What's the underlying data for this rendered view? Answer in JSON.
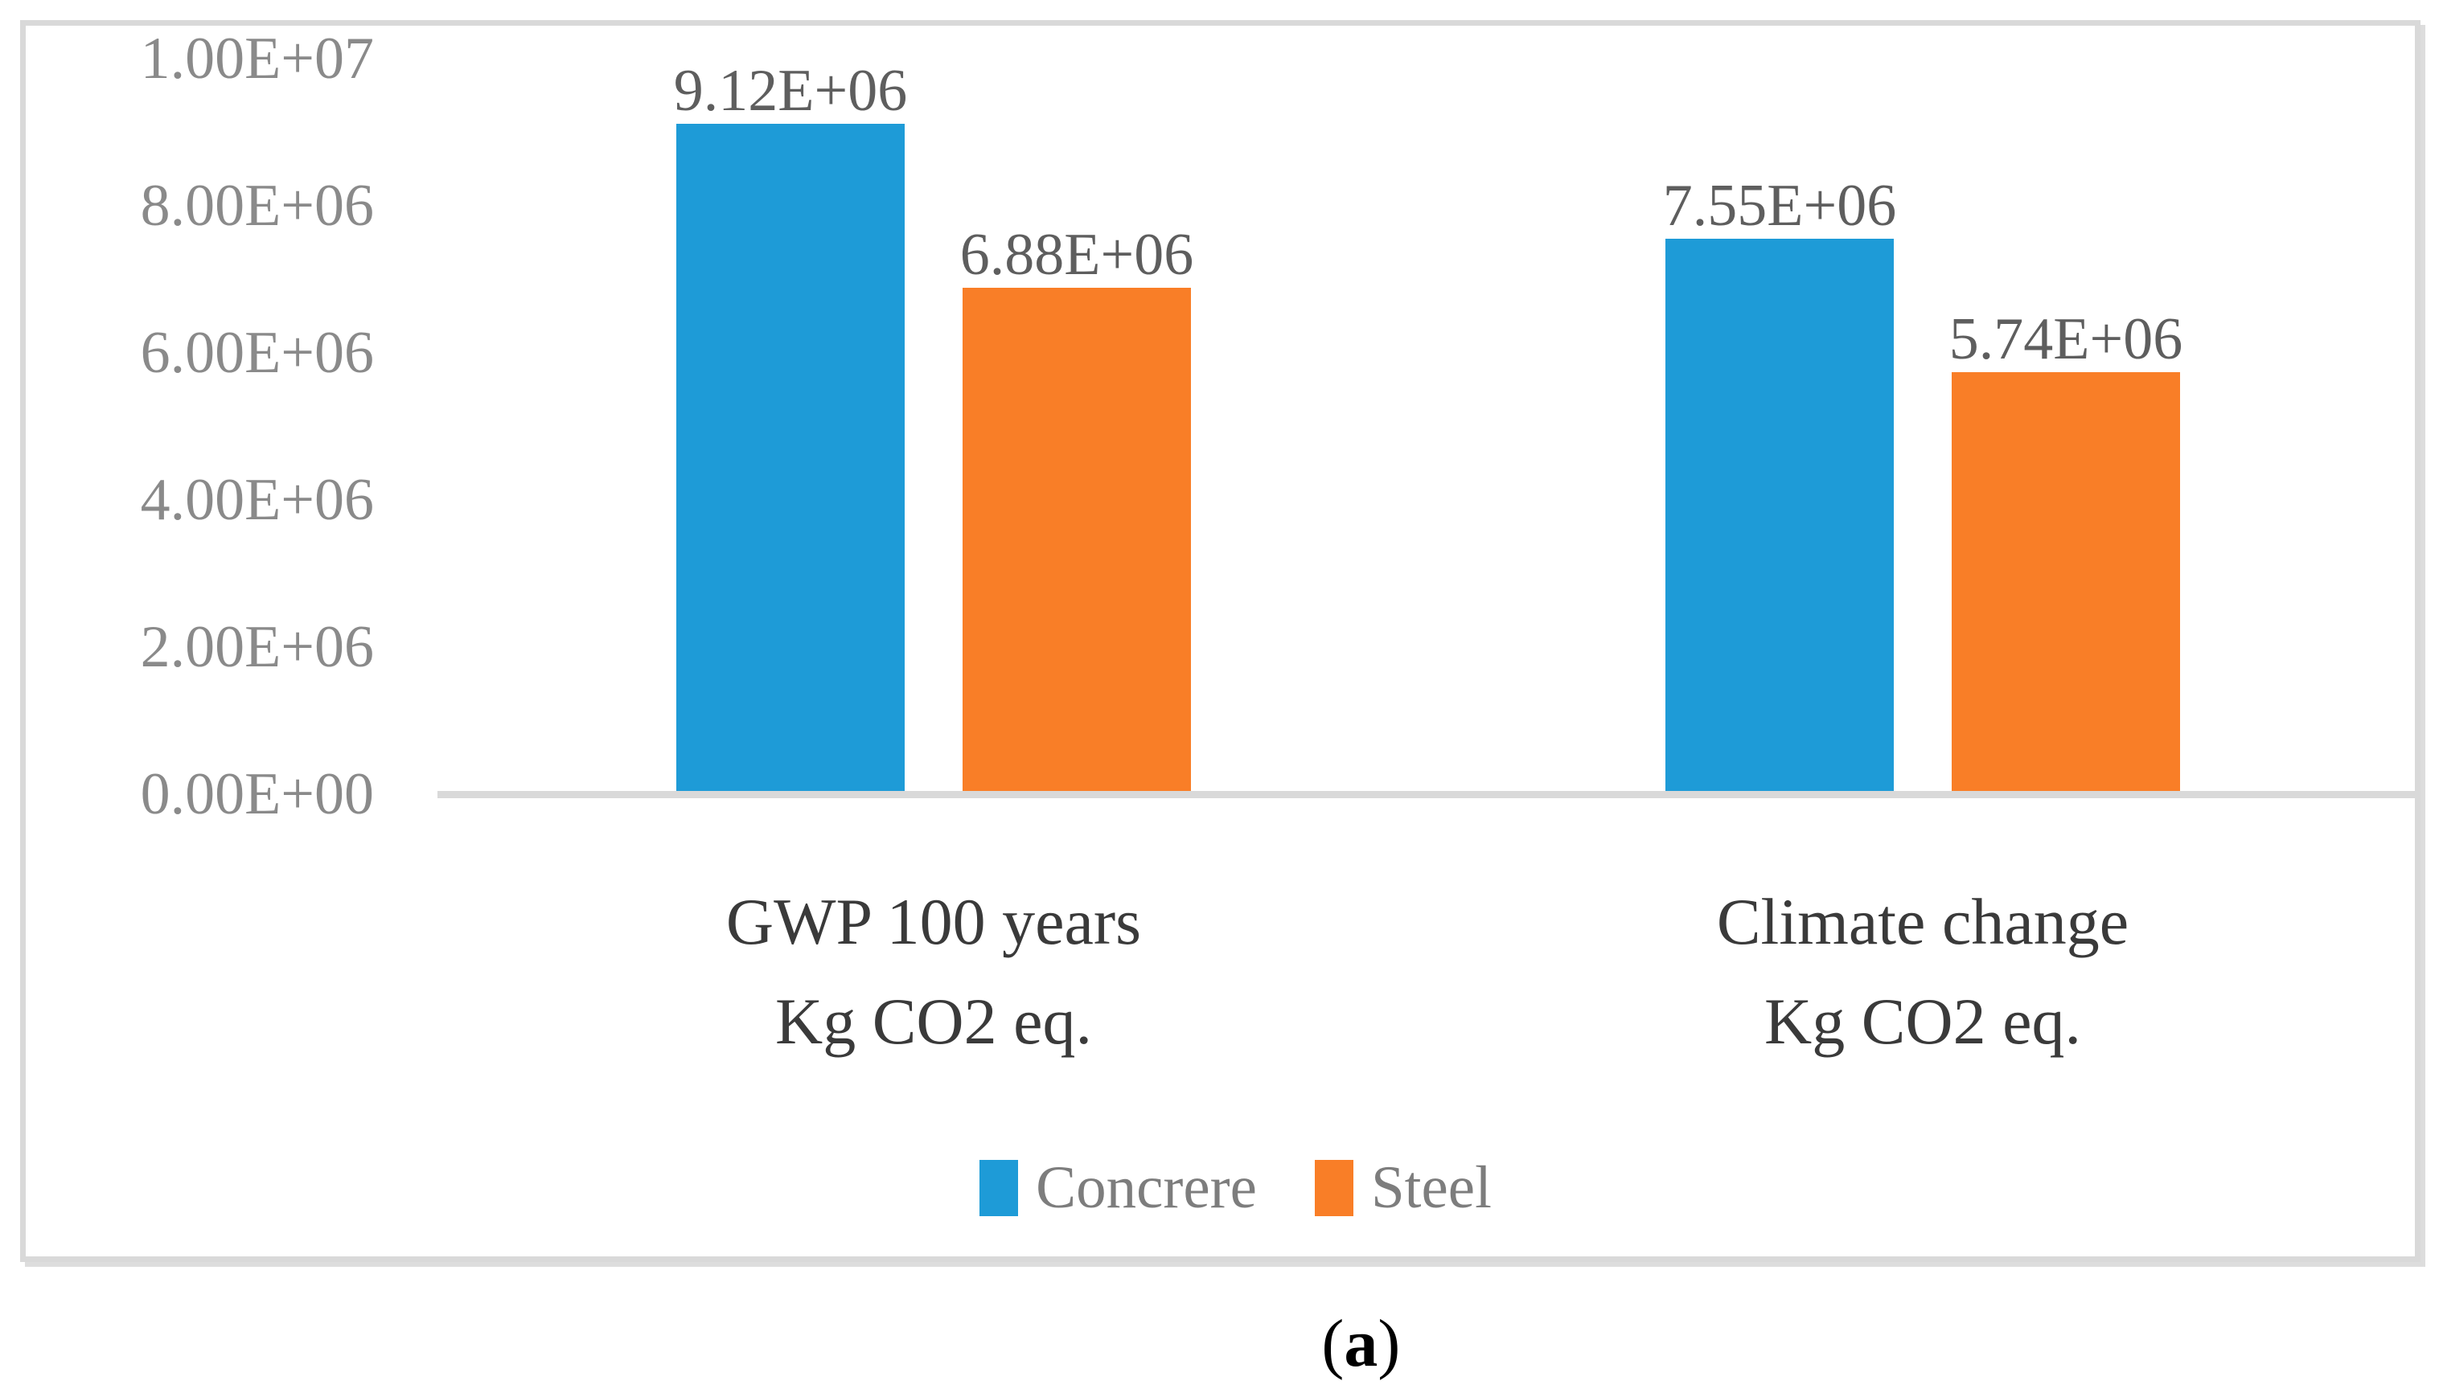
{
  "figure": {
    "caption_open": "(",
    "caption_letter": "a",
    "caption_close": ")"
  },
  "chart_data": {
    "type": "bar",
    "title": "",
    "xlabel": "",
    "ylabel": "",
    "grid": false,
    "legend_position": "bottom",
    "ylim": [
      0,
      10000000
    ],
    "y_ticks": [
      {
        "label": "0.00E+00",
        "value": 0
      },
      {
        "label": "2.00E+06",
        "value": 2000000
      },
      {
        "label": "4.00E+06",
        "value": 4000000
      },
      {
        "label": "6.00E+06",
        "value": 6000000
      },
      {
        "label": "8.00E+06",
        "value": 8000000
      },
      {
        "label": "1.00E+07",
        "value": 10000000
      }
    ],
    "categories": [
      {
        "lines": [
          "GWP 100 years",
          "Kg CO2 eq."
        ]
      },
      {
        "lines": [
          "Climate change",
          "Kg CO2 eq."
        ]
      }
    ],
    "series": [
      {
        "name": "Concrere",
        "color": "#1E9BD7",
        "values": [
          9120000,
          7550000
        ],
        "value_labels": [
          "9.12E+06",
          "7.55E+06"
        ]
      },
      {
        "name": "Steel",
        "color": "#F97E27",
        "values": [
          6880000,
          5740000
        ],
        "value_labels": [
          "6.88E+06",
          "5.74E+06"
        ]
      }
    ],
    "axis_color": "#D9D9D9"
  }
}
